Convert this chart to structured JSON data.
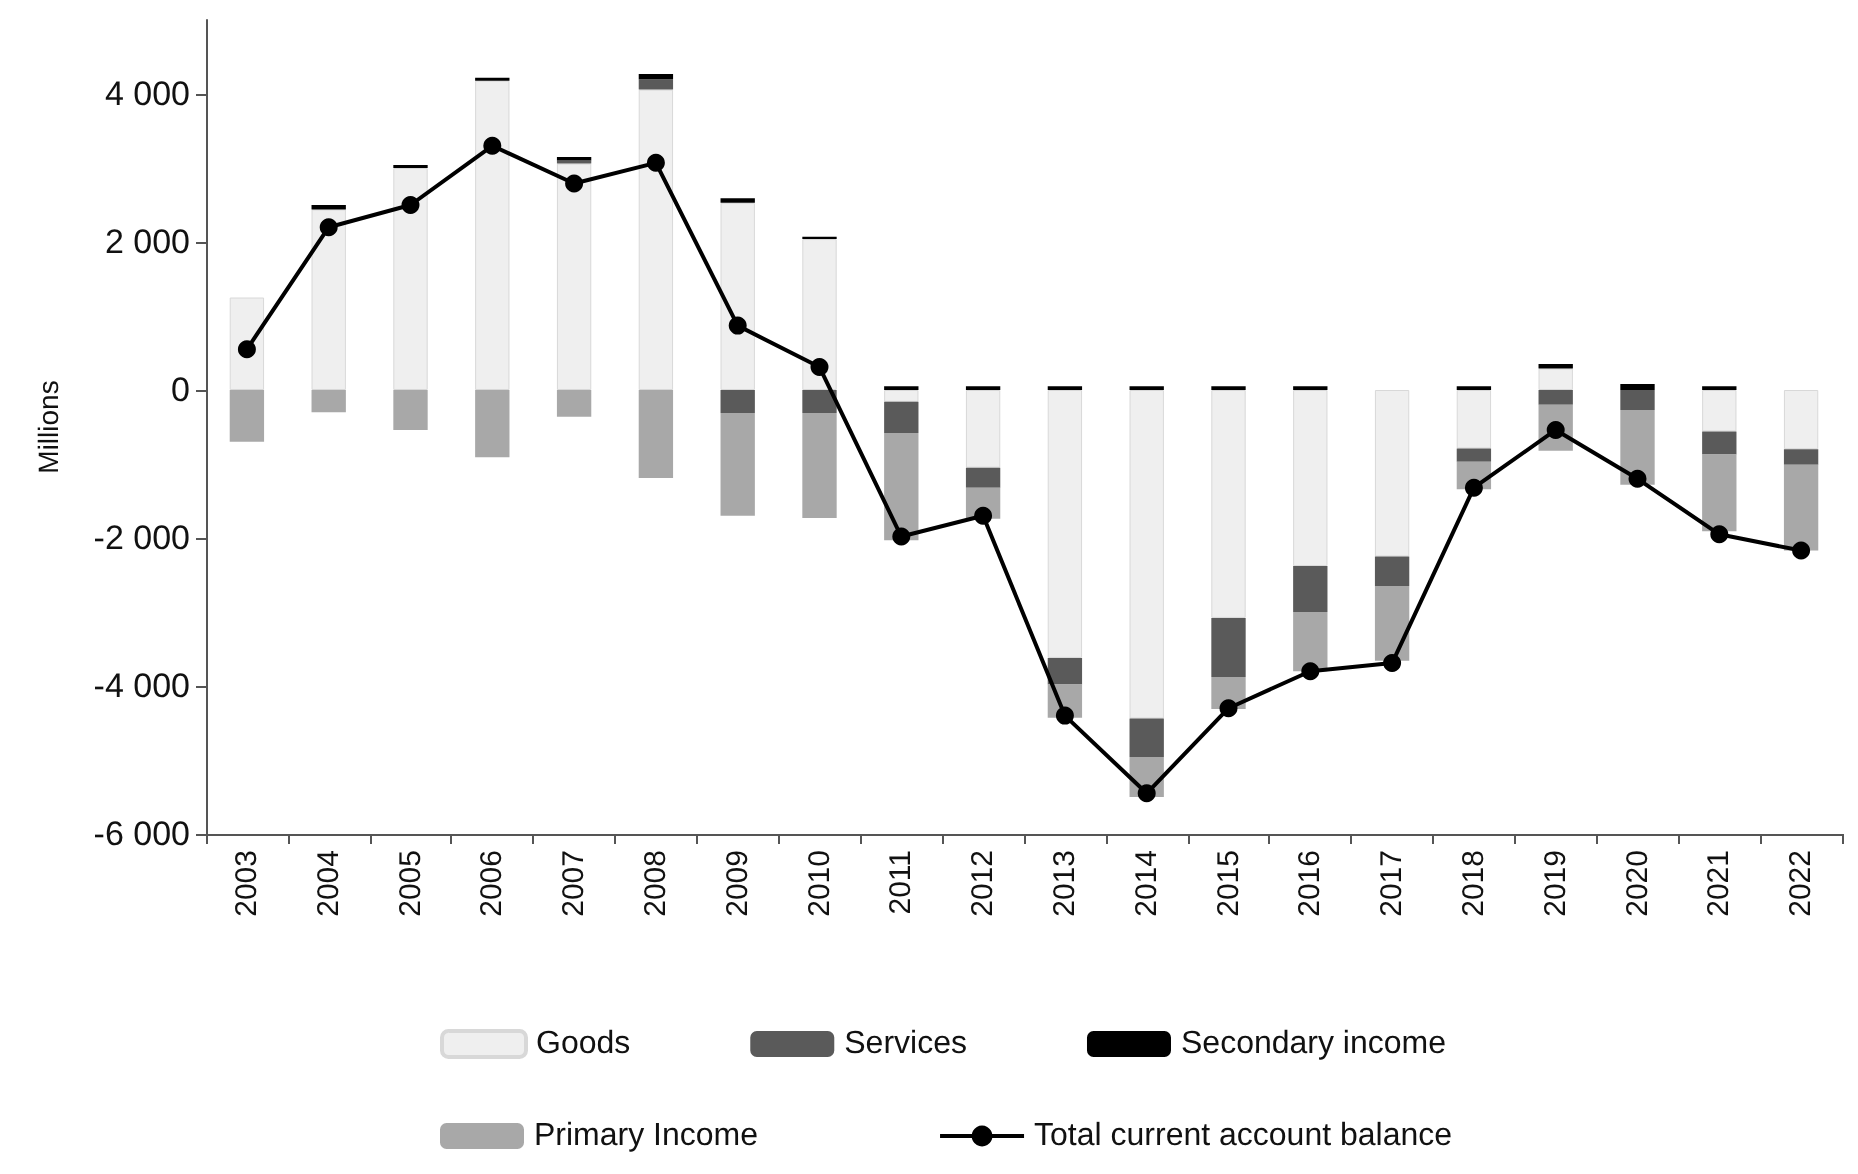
{
  "chart_data": {
    "type": "bar",
    "stacked": true,
    "ylabel": "Millions",
    "categories": [
      "2003",
      "2004",
      "2005",
      "2006",
      "2007",
      "2008",
      "2009",
      "2010",
      "2011",
      "2012",
      "2013",
      "2014",
      "2015",
      "2016",
      "2017",
      "2018",
      "2019",
      "2020",
      "2021",
      "2022"
    ],
    "series": [
      {
        "name": "Goods",
        "color": "#efefef",
        "values": [
          1250,
          2440,
          3000,
          4180,
          3060,
          4060,
          2530,
          2040,
          -160,
          -1050,
          -3620,
          -4440,
          -3080,
          -2380,
          -2250,
          -790,
          290,
          null,
          -560,
          -800
        ]
      },
      {
        "name": "Services",
        "color": "#5a5a5a",
        "values": [
          null,
          null,
          null,
          null,
          40,
          140,
          -310,
          -310,
          -420,
          -270,
          -360,
          -520,
          -800,
          -620,
          -400,
          -180,
          -200,
          -270,
          -310,
          -210
        ]
      },
      {
        "name": "Secondary income",
        "color": "#000000",
        "values": [
          null,
          60,
          40,
          40,
          50,
          70,
          60,
          30,
          50,
          50,
          50,
          50,
          50,
          50,
          null,
          50,
          60,
          80,
          50,
          null
        ]
      },
      {
        "name": "Primary Income",
        "color": "#a8a8a8",
        "values": [
          -700,
          -300,
          -540,
          -910,
          -360,
          -1190,
          -1390,
          -1420,
          -1450,
          -420,
          -450,
          -540,
          -430,
          -800,
          -1010,
          -370,
          -620,
          -1010,
          -1040,
          -1160
        ]
      },
      {
        "name": "Total current account balance",
        "type": "line",
        "color": "#000000",
        "values": [
          550,
          2200,
          2500,
          3300,
          2790,
          3070,
          870,
          310,
          -1980,
          -1700,
          -4400,
          -5450,
          -4300,
          -3800,
          -3690,
          -1320,
          -540,
          -1200,
          -1950,
          -2170
        ]
      }
    ],
    "ylim": [
      -6000,
      5000
    ],
    "yticks": [
      {
        "value": -6000,
        "label": "-6 000"
      },
      {
        "value": -4000,
        "label": "-4 000"
      },
      {
        "value": -2000,
        "label": "-2 000"
      },
      0,
      {
        "value": 2000,
        "label": "2 000"
      },
      {
        "value": 4000,
        "label": "4 000"
      }
    ],
    "grid": false,
    "legend": "bottom",
    "marker": "circle",
    "line_style": "solid"
  }
}
